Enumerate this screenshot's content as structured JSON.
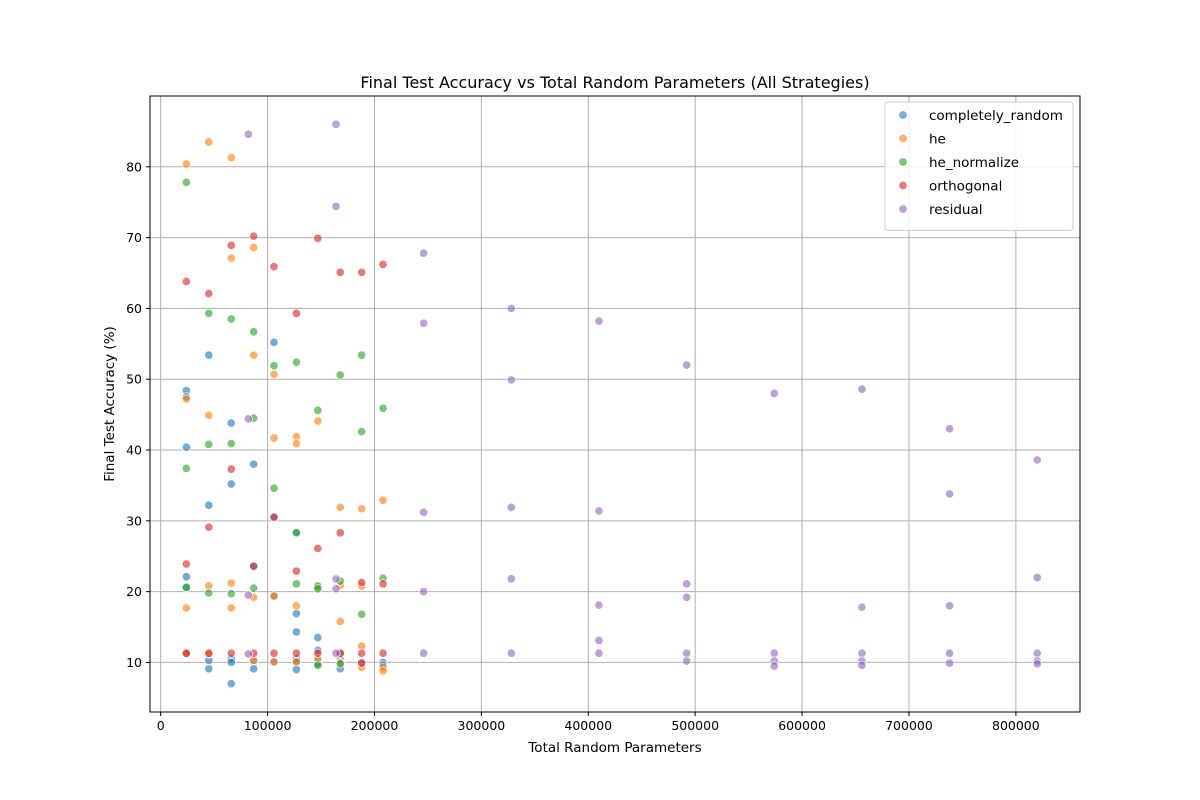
{
  "chart_data": {
    "type": "scatter",
    "title": "Final Test Accuracy vs Total Random Parameters (All Strategies)",
    "xlabel": "Total Random Parameters",
    "ylabel": "Final Test Accuracy (%)",
    "xlim": [
      -10000,
      860000
    ],
    "ylim": [
      3,
      90
    ],
    "xticks": [
      0,
      100000,
      200000,
      300000,
      400000,
      500000,
      600000,
      700000,
      800000
    ],
    "yticks": [
      10,
      20,
      30,
      40,
      50,
      60,
      70,
      80
    ],
    "grid": true,
    "legend_position": "top-right",
    "series": [
      {
        "name": "completely_random",
        "color": "#1f77b4",
        "points": [
          [
            24000,
            48.4
          ],
          [
            24000,
            47.5
          ],
          [
            24000,
            40.4
          ],
          [
            24000,
            22.1
          ],
          [
            24000,
            20.6
          ],
          [
            24000,
            11.2
          ],
          [
            45000,
            53.4
          ],
          [
            45000,
            32.2
          ],
          [
            45000,
            10.3
          ],
          [
            45000,
            9.1
          ],
          [
            66000,
            43.8
          ],
          [
            66000,
            35.2
          ],
          [
            66000,
            10.5
          ],
          [
            66000,
            10.0
          ],
          [
            66000,
            7.0
          ],
          [
            87000,
            38.0
          ],
          [
            87000,
            23.5
          ],
          [
            87000,
            10.1
          ],
          [
            87000,
            9.1
          ],
          [
            106000,
            55.2
          ],
          [
            106000,
            30.6
          ],
          [
            106000,
            19.3
          ],
          [
            106000,
            10.0
          ],
          [
            127000,
            28.4
          ],
          [
            127000,
            16.9
          ],
          [
            127000,
            14.3
          ],
          [
            127000,
            10.5
          ],
          [
            127000,
            10.0
          ],
          [
            127000,
            9.0
          ],
          [
            147000,
            13.5
          ],
          [
            147000,
            11.7
          ],
          [
            147000,
            10.2
          ],
          [
            147000,
            9.8
          ],
          [
            168000,
            11.2
          ],
          [
            168000,
            10.4
          ],
          [
            168000,
            9.1
          ],
          [
            188000,
            10.0
          ],
          [
            208000,
            10.0
          ],
          [
            208000,
            9.6
          ]
        ]
      },
      {
        "name": "he",
        "color": "#ff7f0e",
        "points": [
          [
            24000,
            80.4
          ],
          [
            24000,
            47.2
          ],
          [
            24000,
            17.7
          ],
          [
            24000,
            11.3
          ],
          [
            45000,
            83.5
          ],
          [
            45000,
            44.9
          ],
          [
            45000,
            20.8
          ],
          [
            45000,
            11.2
          ],
          [
            66000,
            81.3
          ],
          [
            66000,
            67.1
          ],
          [
            66000,
            21.2
          ],
          [
            66000,
            17.7
          ],
          [
            87000,
            68.6
          ],
          [
            87000,
            53.4
          ],
          [
            87000,
            19.2
          ],
          [
            87000,
            10.3
          ],
          [
            106000,
            50.7
          ],
          [
            106000,
            41.7
          ],
          [
            106000,
            19.4
          ],
          [
            106000,
            10.1
          ],
          [
            127000,
            41.9
          ],
          [
            127000,
            40.9
          ],
          [
            127000,
            18.0
          ],
          [
            127000,
            10.1
          ],
          [
            147000,
            44.1
          ],
          [
            147000,
            20.6
          ],
          [
            147000,
            10.5
          ],
          [
            168000,
            31.9
          ],
          [
            168000,
            20.9
          ],
          [
            168000,
            15.8
          ],
          [
            168000,
            10.0
          ],
          [
            188000,
            31.7
          ],
          [
            188000,
            20.8
          ],
          [
            188000,
            12.3
          ],
          [
            188000,
            9.3
          ],
          [
            208000,
            32.9
          ],
          [
            208000,
            9.3
          ],
          [
            208000,
            8.8
          ]
        ]
      },
      {
        "name": "he_normalize",
        "color": "#2ca02c",
        "points": [
          [
            24000,
            77.8
          ],
          [
            24000,
            37.4
          ],
          [
            24000,
            20.6
          ],
          [
            45000,
            59.3
          ],
          [
            45000,
            40.8
          ],
          [
            45000,
            19.8
          ],
          [
            66000,
            58.5
          ],
          [
            66000,
            40.9
          ],
          [
            66000,
            19.7
          ],
          [
            87000,
            56.7
          ],
          [
            87000,
            44.5
          ],
          [
            87000,
            20.5
          ],
          [
            106000,
            51.9
          ],
          [
            106000,
            34.6
          ],
          [
            127000,
            52.4
          ],
          [
            127000,
            28.3
          ],
          [
            127000,
            21.1
          ],
          [
            147000,
            45.6
          ],
          [
            147000,
            20.8
          ],
          [
            147000,
            20.4
          ],
          [
            147000,
            9.6
          ],
          [
            168000,
            50.6
          ],
          [
            168000,
            21.5
          ],
          [
            168000,
            9.8
          ],
          [
            188000,
            53.4
          ],
          [
            188000,
            42.6
          ],
          [
            188000,
            16.8
          ],
          [
            208000,
            45.9
          ],
          [
            208000,
            21.9
          ]
        ]
      },
      {
        "name": "orthogonal",
        "color": "#d62728",
        "points": [
          [
            24000,
            63.8
          ],
          [
            24000,
            23.9
          ],
          [
            24000,
            11.3
          ],
          [
            45000,
            62.1
          ],
          [
            45000,
            29.1
          ],
          [
            45000,
            11.3
          ],
          [
            66000,
            68.9
          ],
          [
            66000,
            37.3
          ],
          [
            66000,
            11.3
          ],
          [
            87000,
            70.2
          ],
          [
            87000,
            23.6
          ],
          [
            87000,
            11.3
          ],
          [
            106000,
            65.9
          ],
          [
            106000,
            30.5
          ],
          [
            106000,
            11.3
          ],
          [
            127000,
            59.3
          ],
          [
            127000,
            22.9
          ],
          [
            127000,
            11.3
          ],
          [
            147000,
            69.9
          ],
          [
            147000,
            26.1
          ],
          [
            147000,
            11.3
          ],
          [
            168000,
            65.1
          ],
          [
            168000,
            28.3
          ],
          [
            168000,
            11.3
          ],
          [
            188000,
            65.1
          ],
          [
            188000,
            21.3
          ],
          [
            188000,
            11.3
          ],
          [
            188000,
            9.9
          ],
          [
            208000,
            66.2
          ],
          [
            208000,
            21.1
          ],
          [
            208000,
            11.3
          ]
        ]
      },
      {
        "name": "residual",
        "color": "#9467bd",
        "points": [
          [
            82000,
            84.6
          ],
          [
            82000,
            44.4
          ],
          [
            82000,
            19.5
          ],
          [
            82000,
            11.2
          ],
          [
            164000,
            86.0
          ],
          [
            164000,
            74.4
          ],
          [
            164000,
            21.8
          ],
          [
            164000,
            20.4
          ],
          [
            164000,
            11.3
          ],
          [
            246000,
            67.8
          ],
          [
            246000,
            57.9
          ],
          [
            246000,
            31.2
          ],
          [
            246000,
            20.0
          ],
          [
            246000,
            11.3
          ],
          [
            328000,
            60.0
          ],
          [
            328000,
            49.9
          ],
          [
            328000,
            31.9
          ],
          [
            328000,
            21.8
          ],
          [
            328000,
            11.3
          ],
          [
            410000,
            58.2
          ],
          [
            410000,
            31.4
          ],
          [
            410000,
            18.1
          ],
          [
            410000,
            13.1
          ],
          [
            410000,
            11.3
          ],
          [
            492000,
            52.0
          ],
          [
            492000,
            21.1
          ],
          [
            492000,
            19.2
          ],
          [
            492000,
            11.3
          ],
          [
            492000,
            10.2
          ],
          [
            574000,
            48.0
          ],
          [
            574000,
            11.3
          ],
          [
            574000,
            10.2
          ],
          [
            574000,
            9.5
          ],
          [
            656000,
            48.6
          ],
          [
            656000,
            17.8
          ],
          [
            656000,
            11.3
          ],
          [
            656000,
            10.2
          ],
          [
            656000,
            9.6
          ],
          [
            738000,
            43.0
          ],
          [
            738000,
            33.8
          ],
          [
            738000,
            18.0
          ],
          [
            738000,
            11.3
          ],
          [
            738000,
            9.9
          ],
          [
            820000,
            38.6
          ],
          [
            820000,
            22.0
          ],
          [
            820000,
            11.3
          ],
          [
            820000,
            10.2
          ],
          [
            820000,
            9.8
          ]
        ]
      }
    ]
  }
}
